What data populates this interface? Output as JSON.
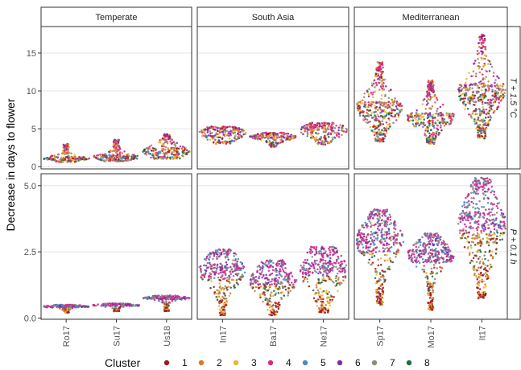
{
  "chart_data": {
    "type": "scatter",
    "subtype": "beeswarm-facet-grid",
    "ylabel": "Decrease in days to flower",
    "columns": [
      "Temperate",
      "South Asia",
      "Mediterranean"
    ],
    "rows": [
      {
        "label": "T + 1.5 °C",
        "ylim": [
          -0.3,
          18.5
        ],
        "yticks": [
          0,
          5,
          10,
          15
        ],
        "ytick_labels": [
          "0",
          "5",
          "10",
          "15"
        ]
      },
      {
        "label": "P + 0.1 h",
        "ylim": [
          -0.05,
          5.45
        ],
        "yticks": [
          0,
          2.5,
          5
        ],
        "ytick_labels": [
          "0.0",
          "2.5",
          "5.0"
        ]
      }
    ],
    "xtick_labels": [
      [
        "Ro17",
        "Su17",
        "Us18"
      ],
      [
        "In17",
        "Ba17",
        "Ne17"
      ],
      [
        "Sp17",
        "Mo17",
        "It17"
      ]
    ],
    "legend": {
      "title": "Cluster",
      "position": "bottom",
      "entries": [
        {
          "label": "1",
          "color": "#9b1c1f"
        },
        {
          "label": "2",
          "color": "#d9782d"
        },
        {
          "label": "3",
          "color": "#e8b730"
        },
        {
          "label": "4",
          "color": "#d6288a"
        },
        {
          "label": "5",
          "color": "#4d8ac4"
        },
        {
          "label": "6",
          "color": "#7b2fa0"
        },
        {
          "label": "7",
          "color": "#8a8c7a"
        },
        {
          "label": "8",
          "color": "#1f6e3c"
        }
      ]
    },
    "grid": true,
    "distributions": [
      [
        [
          {
            "name": "Ro17",
            "min": 0.6,
            "q1": 0.95,
            "median": 1.1,
            "q3": 1.3,
            "max": 3.0
          },
          {
            "name": "Su17",
            "min": 0.7,
            "q1": 1.1,
            "median": 1.3,
            "q3": 1.6,
            "max": 3.7
          },
          {
            "name": "Us18",
            "min": 1.0,
            "q1": 1.6,
            "median": 2.0,
            "q3": 2.5,
            "max": 4.3
          }
        ],
        [
          {
            "name": "In17",
            "min": 3.0,
            "q1": 3.9,
            "median": 4.4,
            "q3": 4.8,
            "max": 5.3
          },
          {
            "name": "Ba17",
            "min": 2.6,
            "q1": 3.6,
            "median": 3.9,
            "q3": 4.1,
            "max": 4.5
          },
          {
            "name": "Ne17",
            "min": 2.9,
            "q1": 4.2,
            "median": 4.8,
            "q3": 5.2,
            "max": 5.8
          }
        ],
        [
          {
            "name": "Sp17",
            "min": 3.3,
            "q1": 6.5,
            "median": 7.8,
            "q3": 8.6,
            "max": 13.8
          },
          {
            "name": "Mo17",
            "min": 3.0,
            "q1": 5.6,
            "median": 6.5,
            "q3": 7.1,
            "max": 11.4
          },
          {
            "name": "It17",
            "min": 3.7,
            "q1": 8.3,
            "median": 9.8,
            "q3": 11.0,
            "max": 17.5
          }
        ]
      ],
      [
        [
          {
            "name": "Ro17",
            "min": 0.2,
            "q1": 0.4,
            "median": 0.43,
            "q3": 0.45,
            "max": 0.5
          },
          {
            "name": "Su17",
            "min": 0.25,
            "q1": 0.45,
            "median": 0.48,
            "q3": 0.5,
            "max": 0.55
          },
          {
            "name": "Us18",
            "min": 0.25,
            "q1": 0.7,
            "median": 0.75,
            "q3": 0.78,
            "max": 0.85
          }
        ],
        [
          {
            "name": "In17",
            "min": 0.1,
            "q1": 1.4,
            "median": 1.8,
            "q3": 2.0,
            "max": 2.6
          },
          {
            "name": "Ba17",
            "min": 0.1,
            "q1": 1.1,
            "median": 1.4,
            "q3": 1.7,
            "max": 2.2
          },
          {
            "name": "Ne17",
            "min": 0.2,
            "q1": 1.3,
            "median": 1.8,
            "q3": 2.1,
            "max": 2.7
          }
        ],
        [
          {
            "name": "Sp17",
            "min": 0.5,
            "q1": 2.4,
            "median": 2.9,
            "q3": 3.2,
            "max": 4.1
          },
          {
            "name": "Mo17",
            "min": 0.3,
            "q1": 2.1,
            "median": 2.4,
            "q3": 2.6,
            "max": 3.2
          },
          {
            "name": "It17",
            "min": 0.7,
            "q1": 2.8,
            "median": 3.5,
            "q3": 4.0,
            "max": 5.3
          }
        ]
      ]
    ]
  }
}
